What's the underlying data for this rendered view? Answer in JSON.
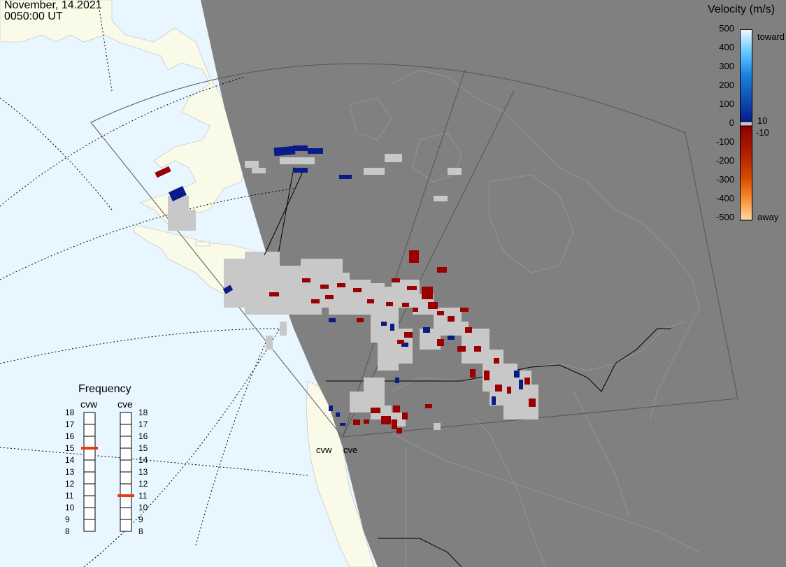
{
  "header": {
    "date": "November, 14.2021",
    "time": "0050:00 UT"
  },
  "velocity_scale": {
    "title": "Velocity (m/s)",
    "ticks": [
      "500",
      "400",
      "300",
      "200",
      "100",
      "0",
      "-100",
      "-200",
      "-300",
      "-400",
      "-500"
    ],
    "extra_ticks": [
      "10",
      "-10"
    ],
    "toward_label": "toward",
    "away_label": "away",
    "colors": [
      "#f0f8ff",
      "#80d4ff",
      "#20a0f0",
      "#1060c0",
      "#081a90",
      "#a00000",
      "#c03000",
      "#e06000",
      "#f8a040",
      "#ffd8a8"
    ]
  },
  "frequency_panel": {
    "title": "Frequency",
    "radars": [
      {
        "name": "cvw",
        "value_mhz": 15
      },
      {
        "name": "cve",
        "value_mhz": 11
      }
    ],
    "ticks": [
      "18",
      "17",
      "16",
      "15",
      "14",
      "13",
      "12",
      "11",
      "10",
      "9",
      "8"
    ]
  },
  "radar_sites": [
    "cvw",
    "cve"
  ],
  "colors": {
    "ocean": "#e8f6ff",
    "land": "#fafae8",
    "night": "#808080",
    "ground_scatter": "#c8c8c8",
    "toward": "#0a1a88",
    "away": "#9a0000",
    "marker": "#e04010"
  }
}
